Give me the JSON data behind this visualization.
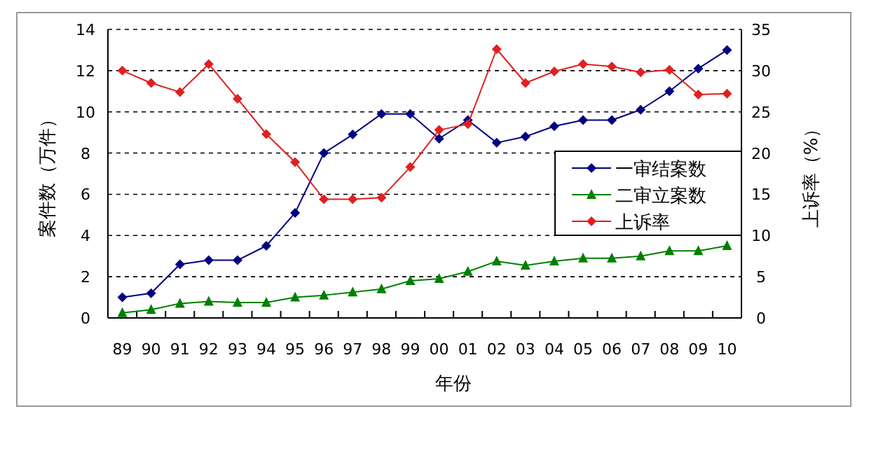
{
  "chart_data": {
    "type": "line",
    "xlabel": "年份",
    "ylabel": "案件数（万件）",
    "y2label": "上诉率（%）",
    "categories": [
      "89",
      "90",
      "91",
      "92",
      "93",
      "94",
      "95",
      "96",
      "97",
      "98",
      "99",
      "00",
      "01",
      "02",
      "03",
      "04",
      "05",
      "06",
      "07",
      "08",
      "09",
      "10"
    ],
    "ylim": [
      0,
      14
    ],
    "yticks": [
      0,
      2,
      4,
      6,
      8,
      10,
      12,
      14
    ],
    "y2lim": [
      0,
      35
    ],
    "y2ticks": [
      0,
      5,
      10,
      15,
      20,
      25,
      30,
      35
    ],
    "grid": "y",
    "legend": "right",
    "line_style": "solid",
    "series": [
      {
        "name": "一审结案数",
        "color": "#000080",
        "marker": "diamond",
        "values": [
          1.0,
          1.2,
          2.6,
          2.8,
          2.8,
          3.5,
          5.1,
          8.0,
          8.9,
          9.9,
          9.9,
          8.7,
          9.6,
          8.5,
          8.8,
          9.3,
          9.6,
          9.6,
          10.1,
          11.0,
          12.1,
          13.0
        ]
      },
      {
        "name": "二审立案数",
        "color": "#008000",
        "marker": "triangle",
        "values": [
          0.25,
          0.4,
          0.7,
          0.8,
          0.75,
          0.75,
          1.0,
          1.1,
          1.25,
          1.4,
          1.8,
          1.9,
          2.25,
          2.75,
          2.55,
          2.75,
          2.9,
          2.9,
          3.0,
          3.25,
          3.25,
          3.5
        ]
      },
      {
        "name": "上诉率",
        "color": "#e02020",
        "marker": "diamond",
        "axis": "y2",
        "values": [
          30,
          28.5,
          27.4,
          30.8,
          26.6,
          22.3,
          18.9,
          14.4,
          14.4,
          14.6,
          18.3,
          22.8,
          23.5,
          32.6,
          28.5,
          29.9,
          30.8,
          30.5,
          29.8,
          30.1,
          27.1,
          27.2
        ]
      }
    ]
  }
}
